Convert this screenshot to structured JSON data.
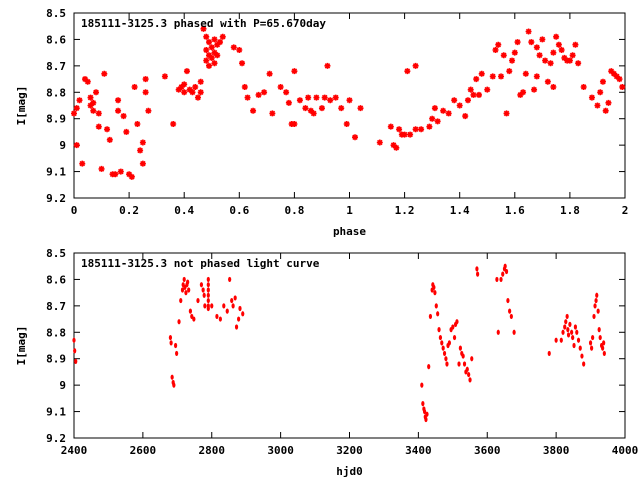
{
  "colors": {
    "points": "#ff0000",
    "axis": "#000000",
    "background": "#ffffff"
  },
  "chart_data": [
    {
      "type": "scatter",
      "title": "185111-3125.3 phased with P=65.670day",
      "xlabel": "phase",
      "ylabel": "I[mag]",
      "xlim": [
        0,
        2
      ],
      "ylim": [
        8.5,
        9.2
      ],
      "y_inverted": true,
      "grid": false,
      "x_ticks": [
        "0",
        "0.2",
        "0.4",
        "0.6",
        "0.8",
        "1",
        "1.2",
        "1.4",
        "1.6",
        "1.8",
        "2"
      ],
      "y_ticks": [
        "8.5",
        "8.6",
        "8.7",
        "8.8",
        "8.9",
        "9",
        "9.1",
        "9.2"
      ],
      "marker": "star",
      "points": [
        [
          0.0,
          8.88
        ],
        [
          0.01,
          8.86
        ],
        [
          0.01,
          9.0
        ],
        [
          0.02,
          8.83
        ],
        [
          0.03,
          9.07
        ],
        [
          0.04,
          8.75
        ],
        [
          0.05,
          8.76
        ],
        [
          0.06,
          8.82
        ],
        [
          0.06,
          8.85
        ],
        [
          0.07,
          8.84
        ],
        [
          0.07,
          8.87
        ],
        [
          0.08,
          8.8
        ],
        [
          0.09,
          8.93
        ],
        [
          0.09,
          8.88
        ],
        [
          0.1,
          9.09
        ],
        [
          0.11,
          8.73
        ],
        [
          0.12,
          8.94
        ],
        [
          0.13,
          8.98
        ],
        [
          0.14,
          9.11
        ],
        [
          0.15,
          9.11
        ],
        [
          0.16,
          8.83
        ],
        [
          0.16,
          8.87
        ],
        [
          0.17,
          9.1
        ],
        [
          0.18,
          8.89
        ],
        [
          0.19,
          8.95
        ],
        [
          0.2,
          9.11
        ],
        [
          0.21,
          9.12
        ],
        [
          0.22,
          8.78
        ],
        [
          0.23,
          8.92
        ],
        [
          0.24,
          9.02
        ],
        [
          0.25,
          8.99
        ],
        [
          0.25,
          9.07
        ],
        [
          0.26,
          8.8
        ],
        [
          0.26,
          8.75
        ],
        [
          0.27,
          8.87
        ],
        [
          0.33,
          8.74
        ],
        [
          0.36,
          8.92
        ],
        [
          0.38,
          8.79
        ],
        [
          0.39,
          8.78
        ],
        [
          0.4,
          8.8
        ],
        [
          0.4,
          8.77
        ],
        [
          0.41,
          8.72
        ],
        [
          0.42,
          8.79
        ],
        [
          0.43,
          8.8
        ],
        [
          0.44,
          8.78
        ],
        [
          0.45,
          8.82
        ],
        [
          0.46,
          8.76
        ],
        [
          0.46,
          8.8
        ],
        [
          0.47,
          8.56
        ],
        [
          0.48,
          8.59
        ],
        [
          0.48,
          8.64
        ],
        [
          0.48,
          8.68
        ],
        [
          0.49,
          8.61
        ],
        [
          0.49,
          8.66
        ],
        [
          0.49,
          8.7
        ],
        [
          0.5,
          8.63
        ],
        [
          0.5,
          8.67
        ],
        [
          0.51,
          8.6
        ],
        [
          0.51,
          8.65
        ],
        [
          0.51,
          8.69
        ],
        [
          0.52,
          8.62
        ],
        [
          0.52,
          8.66
        ],
        [
          0.53,
          8.61
        ],
        [
          0.54,
          8.59
        ],
        [
          0.58,
          8.63
        ],
        [
          0.6,
          8.64
        ],
        [
          0.61,
          8.69
        ],
        [
          0.62,
          8.78
        ],
        [
          0.63,
          8.82
        ],
        [
          0.65,
          8.87
        ],
        [
          0.67,
          8.81
        ],
        [
          0.69,
          8.8
        ],
        [
          0.71,
          8.73
        ],
        [
          0.72,
          8.88
        ],
        [
          0.75,
          8.78
        ],
        [
          0.77,
          8.8
        ],
        [
          0.78,
          8.84
        ],
        [
          0.79,
          8.92
        ],
        [
          0.8,
          8.92
        ],
        [
          0.8,
          8.72
        ],
        [
          0.82,
          8.83
        ],
        [
          0.84,
          8.86
        ],
        [
          0.85,
          8.82
        ],
        [
          0.86,
          8.87
        ],
        [
          0.87,
          8.88
        ],
        [
          0.88,
          8.82
        ],
        [
          0.9,
          8.86
        ],
        [
          0.91,
          8.82
        ],
        [
          0.92,
          8.7
        ],
        [
          0.93,
          8.83
        ],
        [
          0.95,
          8.82
        ],
        [
          0.97,
          8.86
        ],
        [
          0.99,
          8.92
        ],
        [
          1.0,
          8.83
        ],
        [
          1.02,
          8.97
        ],
        [
          1.04,
          8.86
        ],
        [
          1.11,
          8.99
        ],
        [
          1.15,
          8.93
        ],
        [
          1.16,
          9.0
        ],
        [
          1.17,
          9.01
        ],
        [
          1.18,
          8.94
        ],
        [
          1.19,
          8.96
        ],
        [
          1.2,
          8.96
        ],
        [
          1.21,
          8.72
        ],
        [
          1.22,
          8.96
        ],
        [
          1.24,
          8.7
        ],
        [
          1.24,
          8.94
        ],
        [
          1.26,
          8.94
        ],
        [
          1.29,
          8.93
        ],
        [
          1.3,
          8.9
        ],
        [
          1.31,
          8.86
        ],
        [
          1.32,
          8.91
        ],
        [
          1.34,
          8.87
        ],
        [
          1.36,
          8.88
        ],
        [
          1.38,
          8.83
        ],
        [
          1.4,
          8.85
        ],
        [
          1.42,
          8.89
        ],
        [
          1.43,
          8.83
        ],
        [
          1.44,
          8.79
        ],
        [
          1.45,
          8.81
        ],
        [
          1.46,
          8.75
        ],
        [
          1.47,
          8.81
        ],
        [
          1.48,
          8.73
        ],
        [
          1.5,
          8.79
        ],
        [
          1.52,
          8.74
        ],
        [
          1.53,
          8.64
        ],
        [
          1.54,
          8.62
        ],
        [
          1.55,
          8.74
        ],
        [
          1.56,
          8.66
        ],
        [
          1.57,
          8.88
        ],
        [
          1.58,
          8.72
        ],
        [
          1.59,
          8.68
        ],
        [
          1.6,
          8.65
        ],
        [
          1.61,
          8.61
        ],
        [
          1.62,
          8.81
        ],
        [
          1.63,
          8.8
        ],
        [
          1.64,
          8.73
        ],
        [
          1.65,
          8.57
        ],
        [
          1.66,
          8.61
        ],
        [
          1.67,
          8.79
        ],
        [
          1.68,
          8.74
        ],
        [
          1.68,
          8.63
        ],
        [
          1.69,
          8.66
        ],
        [
          1.7,
          8.6
        ],
        [
          1.71,
          8.68
        ],
        [
          1.72,
          8.76
        ],
        [
          1.73,
          8.69
        ],
        [
          1.74,
          8.78
        ],
        [
          1.74,
          8.65
        ],
        [
          1.75,
          8.59
        ],
        [
          1.76,
          8.62
        ],
        [
          1.77,
          8.64
        ],
        [
          1.78,
          8.67
        ],
        [
          1.79,
          8.68
        ],
        [
          1.8,
          8.68
        ],
        [
          1.81,
          8.66
        ],
        [
          1.82,
          8.62
        ],
        [
          1.83,
          8.69
        ],
        [
          1.85,
          8.78
        ],
        [
          1.88,
          8.82
        ],
        [
          1.9,
          8.85
        ],
        [
          1.91,
          8.8
        ],
        [
          1.92,
          8.76
        ],
        [
          1.93,
          8.87
        ],
        [
          1.94,
          8.84
        ],
        [
          1.95,
          8.72
        ],
        [
          1.96,
          8.73
        ],
        [
          1.97,
          8.74
        ],
        [
          1.98,
          8.75
        ],
        [
          1.99,
          8.78
        ]
      ]
    },
    {
      "type": "scatter",
      "title": "185111-3125.3 not phased light curve",
      "xlabel": "hjd0",
      "ylabel": "I[mag]",
      "xlim": [
        2400,
        4000
      ],
      "ylim": [
        8.5,
        9.2
      ],
      "y_inverted": true,
      "grid": false,
      "x_ticks": [
        "2400",
        "2600",
        "2800",
        "3000",
        "3200",
        "3400",
        "3600",
        "3800",
        "4000"
      ],
      "y_ticks": [
        "8.5",
        "8.6",
        "8.7",
        "8.8",
        "8.9",
        "9",
        "9.1",
        "9.2"
      ],
      "marker": "dot",
      "points": [
        [
          2400,
          8.83
        ],
        [
          2402,
          8.87
        ],
        [
          2405,
          8.91
        ],
        [
          2680,
          8.82
        ],
        [
          2682,
          8.84
        ],
        [
          2685,
          8.97
        ],
        [
          2688,
          8.99
        ],
        [
          2690,
          9.0
        ],
        [
          2695,
          8.85
        ],
        [
          2698,
          8.88
        ],
        [
          2705,
          8.76
        ],
        [
          2710,
          8.68
        ],
        [
          2715,
          8.64
        ],
        [
          2717,
          8.62
        ],
        [
          2720,
          8.6
        ],
        [
          2722,
          8.63
        ],
        [
          2725,
          8.65
        ],
        [
          2728,
          8.62
        ],
        [
          2730,
          8.61
        ],
        [
          2733,
          8.64
        ],
        [
          2738,
          8.72
        ],
        [
          2742,
          8.74
        ],
        [
          2748,
          8.75
        ],
        [
          2760,
          8.68
        ],
        [
          2770,
          8.62
        ],
        [
          2775,
          8.64
        ],
        [
          2778,
          8.66
        ],
        [
          2780,
          8.7
        ],
        [
          2790,
          8.6
        ],
        [
          2790,
          8.62
        ],
        [
          2790,
          8.64
        ],
        [
          2790,
          8.66
        ],
        [
          2790,
          8.68
        ],
        [
          2790,
          8.7
        ],
        [
          2790,
          8.71
        ],
        [
          2800,
          8.7
        ],
        [
          2815,
          8.74
        ],
        [
          2825,
          8.75
        ],
        [
          2835,
          8.7
        ],
        [
          2845,
          8.72
        ],
        [
          2852,
          8.6
        ],
        [
          2858,
          8.68
        ],
        [
          2862,
          8.7
        ],
        [
          2868,
          8.67
        ],
        [
          2872,
          8.78
        ],
        [
          2878,
          8.75
        ],
        [
          2882,
          8.71
        ],
        [
          2890,
          8.73
        ],
        [
          3410,
          9.0
        ],
        [
          3413,
          9.07
        ],
        [
          3416,
          9.09
        ],
        [
          3418,
          9.1
        ],
        [
          3420,
          9.12
        ],
        [
          3422,
          9.13
        ],
        [
          3425,
          9.11
        ],
        [
          3430,
          8.93
        ],
        [
          3435,
          8.74
        ],
        [
          3440,
          8.64
        ],
        [
          3442,
          8.62
        ],
        [
          3445,
          8.63
        ],
        [
          3448,
          8.65
        ],
        [
          3452,
          8.7
        ],
        [
          3456,
          8.73
        ],
        [
          3460,
          8.79
        ],
        [
          3464,
          8.82
        ],
        [
          3468,
          8.84
        ],
        [
          3472,
          8.86
        ],
        [
          3476,
          8.88
        ],
        [
          3480,
          8.9
        ],
        [
          3483,
          8.92
        ],
        [
          3486,
          8.85
        ],
        [
          3490,
          8.84
        ],
        [
          3495,
          8.79
        ],
        [
          3500,
          8.78
        ],
        [
          3505,
          8.82
        ],
        [
          3508,
          8.77
        ],
        [
          3512,
          8.76
        ],
        [
          3518,
          8.92
        ],
        [
          3522,
          8.86
        ],
        [
          3526,
          8.88
        ],
        [
          3530,
          8.89
        ],
        [
          3534,
          8.92
        ],
        [
          3538,
          8.95
        ],
        [
          3542,
          8.94
        ],
        [
          3546,
          8.96
        ],
        [
          3550,
          8.98
        ],
        [
          3555,
          8.9
        ],
        [
          3570,
          8.56
        ],
        [
          3572,
          8.58
        ],
        [
          3628,
          8.6
        ],
        [
          3632,
          8.8
        ],
        [
          3640,
          8.6
        ],
        [
          3645,
          8.58
        ],
        [
          3650,
          8.56
        ],
        [
          3652,
          8.55
        ],
        [
          3656,
          8.57
        ],
        [
          3660,
          8.68
        ],
        [
          3665,
          8.72
        ],
        [
          3670,
          8.74
        ],
        [
          3678,
          8.8
        ],
        [
          3780,
          8.88
        ],
        [
          3800,
          8.83
        ],
        [
          3815,
          8.83
        ],
        [
          3820,
          8.8
        ],
        [
          3825,
          8.78
        ],
        [
          3828,
          8.76
        ],
        [
          3832,
          8.74
        ],
        [
          3834,
          8.79
        ],
        [
          3836,
          8.81
        ],
        [
          3840,
          8.77
        ],
        [
          3845,
          8.8
        ],
        [
          3848,
          8.82
        ],
        [
          3852,
          8.85
        ],
        [
          3856,
          8.78
        ],
        [
          3860,
          8.8
        ],
        [
          3865,
          8.83
        ],
        [
          3870,
          8.86
        ],
        [
          3875,
          8.89
        ],
        [
          3880,
          8.92
        ],
        [
          3900,
          8.84
        ],
        [
          3903,
          8.86
        ],
        [
          3906,
          8.82
        ],
        [
          3910,
          8.74
        ],
        [
          3913,
          8.7
        ],
        [
          3916,
          8.68
        ],
        [
          3918,
          8.66
        ],
        [
          3922,
          8.72
        ],
        [
          3925,
          8.79
        ],
        [
          3928,
          8.82
        ],
        [
          3932,
          8.85
        ],
        [
          3935,
          8.86
        ],
        [
          3938,
          8.84
        ],
        [
          3940,
          8.88
        ]
      ]
    }
  ]
}
